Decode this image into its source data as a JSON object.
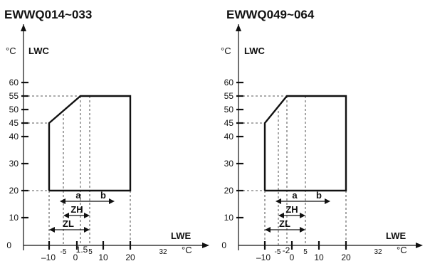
{
  "figure": {
    "left": {
      "title": "EWWQ014~033",
      "y_unit": "°C",
      "y_label": "LWC",
      "x_label": "LWE",
      "x_unit": "°C",
      "y_ticks": [
        "60",
        "55",
        "50",
        "45",
        "40",
        "30",
        "20",
        "10",
        "0"
      ],
      "x_ticks": [
        "–10",
        "-5",
        "0",
        "1.5",
        "5",
        "10",
        "20",
        "32"
      ],
      "zones": {
        "a": "a",
        "b": "b",
        "zh": "ZH",
        "zl": "ZL"
      }
    },
    "right": {
      "title": "EWWQ049~064",
      "y_unit": "°C",
      "y_label": "LWC",
      "x_label": "LWE",
      "x_unit": "°C",
      "y_ticks": [
        "60",
        "55",
        "50",
        "45",
        "40",
        "30",
        "20",
        "10",
        "0"
      ],
      "x_ticks": [
        "–10",
        "-5",
        "-2",
        "0",
        "5",
        "10",
        "20",
        "32"
      ],
      "zones": {
        "a": "a",
        "b": "b",
        "zh": "ZH",
        "zl": "ZL"
      }
    }
  },
  "chart_data": [
    {
      "type": "area",
      "title": "EWWQ014~033",
      "xlabel": "LWE",
      "ylabel": "LWC",
      "x_unit": "°C",
      "y_unit": "°C",
      "envelope": [
        [
          -10,
          20
        ],
        [
          -10,
          45
        ],
        [
          0,
          55
        ],
        [
          20,
          55
        ],
        [
          20,
          20
        ]
      ],
      "regions": {
        "a": [
          -5,
          10
        ],
        "b": [
          5,
          15
        ],
        "ZH": [
          -5,
          5
        ],
        "ZL": [
          -10,
          5
        ]
      }
    },
    {
      "type": "area",
      "title": "EWWQ049~064",
      "xlabel": "LWE",
      "ylabel": "LWC",
      "x_unit": "°C",
      "y_unit": "°C",
      "envelope": [
        [
          -10,
          20
        ],
        [
          -10,
          45
        ],
        [
          -2,
          55
        ],
        [
          20,
          55
        ],
        [
          20,
          20
        ]
      ],
      "regions": {
        "a": [
          -5,
          10
        ],
        "b": [
          5,
          15
        ],
        "ZH": [
          -5,
          5
        ],
        "ZL": [
          -10,
          5
        ]
      }
    }
  ]
}
